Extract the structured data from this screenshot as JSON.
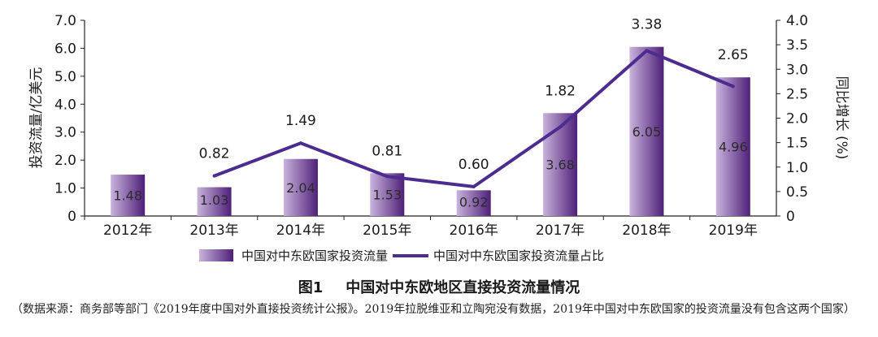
{
  "chart_data": {
    "type": "bar",
    "categories": [
      "2012年",
      "2013年",
      "2014年",
      "2015年",
      "2016年",
      "2017年",
      "2018年",
      "2019年"
    ],
    "series": [
      {
        "name": "中国对中东欧国家投资流量",
        "type": "bar",
        "axis": "left",
        "values": [
          1.48,
          1.03,
          2.04,
          1.53,
          0.92,
          3.68,
          6.05,
          4.96
        ],
        "labels": [
          "1.48",
          "1.03",
          "2.04",
          "1.53",
          "0.92",
          "3.68",
          "6.05",
          "4.96"
        ]
      },
      {
        "name": "中国对中东欧国家投资流量占比",
        "type": "line",
        "axis": "right",
        "values": [
          null,
          0.82,
          1.49,
          0.81,
          0.6,
          1.82,
          3.38,
          2.65
        ],
        "labels": [
          "",
          "0.82",
          "1.49",
          "0.81",
          "0.60",
          "1.82",
          "3.38",
          "2.65"
        ]
      }
    ],
    "ylabel": "投资流量/亿美元",
    "y2label": "同比增长 (%)",
    "ylim": [
      0,
      7
    ],
    "y2lim": [
      0,
      4
    ],
    "yticks": [
      "0",
      "1.0",
      "2.0",
      "3.0",
      "4.0",
      "5.0",
      "6.0",
      "7.0"
    ],
    "y2ticks": [
      "0",
      "0.5",
      "1.0",
      "1.5",
      "2.0",
      "2.5",
      "3.0",
      "3.5",
      "4.0"
    ],
    "grid": false,
    "legend_position": "bottom",
    "colors": {
      "bar_light": "#c9b3dc",
      "bar_dark": "#4e1f78",
      "line": "#4c2d8f"
    }
  },
  "legend": {
    "bar_label": "中国对中东欧国家投资流量",
    "line_label": "中国对中东欧国家投资流量占比"
  },
  "figure": {
    "number": "图1",
    "title": "中国对中东欧地区直接投资流量情况"
  },
  "note": "（数据来源：商务部等部门《2019年度中国对外直接投资统计公报》。2019年拉脱维亚和立陶宛没有数据，2019年中国对中东欧国家的投资流量没有包含这两个国家）"
}
